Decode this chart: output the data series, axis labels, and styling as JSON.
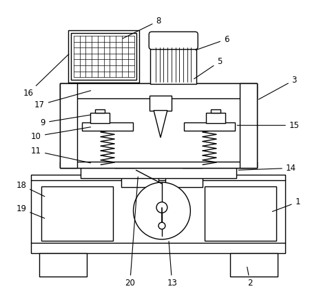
{
  "line_color": "#000000",
  "bg_color": "#ffffff",
  "lw": 1.0,
  "fig_width": 4.63,
  "fig_height": 4.23
}
